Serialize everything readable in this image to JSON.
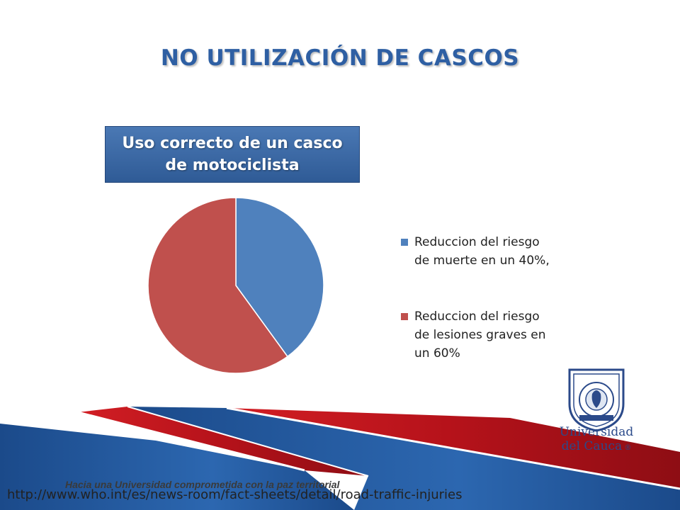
{
  "slide": {
    "title": "NO UTILIZACIÓN DE CASCOS",
    "slogan": "Hacia una Universidad comprometida con la paz territorial",
    "source_url": "http://www.who.int/es/news-room/fact-sheets/detail/road-traffic-injuries",
    "logo_line1": "Universidad",
    "logo_line2": "del Cauca"
  },
  "chart_data": {
    "type": "pie",
    "title": "Uso correcto de un casco de motociclista",
    "categories": [
      "Reduccion del riesgo de muerte en un 40%,",
      "Reduccion del riesgo de lesiones graves en un 60%"
    ],
    "values": [
      40,
      60
    ],
    "colors": [
      "#4f81bd",
      "#c0504d"
    ],
    "legend_position": "right"
  },
  "theme": {
    "title_color": "#2e5fa3",
    "stripe_red": "#c0151b",
    "stripe_blue": "#1f4e8c"
  }
}
